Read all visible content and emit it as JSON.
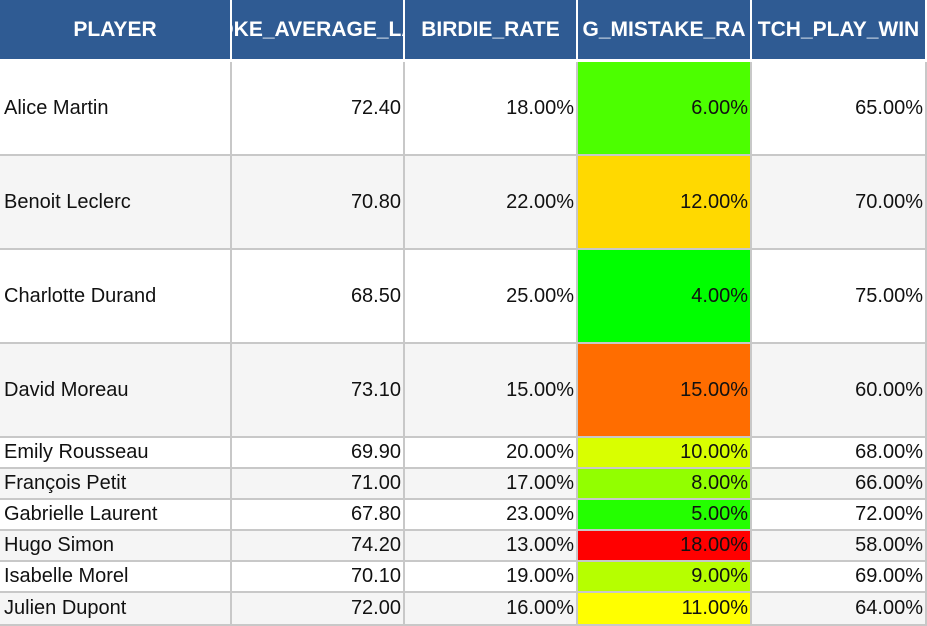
{
  "colors": {
    "header_bg": "#2f5b93",
    "header_text": "#ffffff",
    "grid_line": "#c8c8c8",
    "row_alt": "#f5f5f5"
  },
  "columns": [
    {
      "label": "PLAYER",
      "shown": "PLAYER"
    },
    {
      "label": "STROKE_AVERAGE_LAST",
      "shown": "DKE_AVERAGE_LA"
    },
    {
      "label": "BIRDIE_RATE",
      "shown": "BIRDIE_RATE"
    },
    {
      "label": "BIG_MISTAKE_RATE",
      "shown": "G_MISTAKE_RA"
    },
    {
      "label": "MATCH_PLAY_WIN",
      "shown": "TCH_PLAY_WIN"
    }
  ],
  "rows": [
    {
      "player": "Alice Martin",
      "stroke_avg": "72.40",
      "birdie_rate": "18.00%",
      "mistake_rate": "6.00%",
      "mistake_color": "#4cff00",
      "match_win": "65.00%"
    },
    {
      "player": "Benoit Leclerc",
      "stroke_avg": "70.80",
      "birdie_rate": "22.00%",
      "mistake_rate": "12.00%",
      "mistake_color": "#ffd900",
      "match_win": "70.00%"
    },
    {
      "player": "Charlotte Durand",
      "stroke_avg": "68.50",
      "birdie_rate": "25.00%",
      "mistake_rate": "4.00%",
      "mistake_color": "#00ff00",
      "match_win": "75.00%"
    },
    {
      "player": "David Moreau",
      "stroke_avg": "73.10",
      "birdie_rate": "15.00%",
      "mistake_rate": "15.00%",
      "mistake_color": "#ff6d00",
      "match_win": "60.00%"
    },
    {
      "player": "Emily Rousseau",
      "stroke_avg": "69.90",
      "birdie_rate": "20.00%",
      "mistake_rate": "10.00%",
      "mistake_color": "#d9ff00",
      "match_win": "68.00%"
    },
    {
      "player": "François Petit",
      "stroke_avg": "71.00",
      "birdie_rate": "17.00%",
      "mistake_rate": "8.00%",
      "mistake_color": "#92ff00",
      "match_win": "66.00%"
    },
    {
      "player": "Gabrielle Laurent",
      "stroke_avg": "67.80",
      "birdie_rate": "23.00%",
      "mistake_rate": "5.00%",
      "mistake_color": "#24ff00",
      "match_win": "72.00%"
    },
    {
      "player": "Hugo Simon",
      "stroke_avg": "74.20",
      "birdie_rate": "13.00%",
      "mistake_rate": "18.00%",
      "mistake_color": "#ff0000",
      "match_win": "58.00%"
    },
    {
      "player": "Isabelle Morel",
      "stroke_avg": "70.10",
      "birdie_rate": "19.00%",
      "mistake_rate": "9.00%",
      "mistake_color": "#b6ff00",
      "match_win": "69.00%"
    },
    {
      "player": "Julien Dupont",
      "stroke_avg": "72.00",
      "birdie_rate": "16.00%",
      "mistake_rate": "11.00%",
      "mistake_color": "#ffff00",
      "match_win": "64.00%"
    }
  ]
}
